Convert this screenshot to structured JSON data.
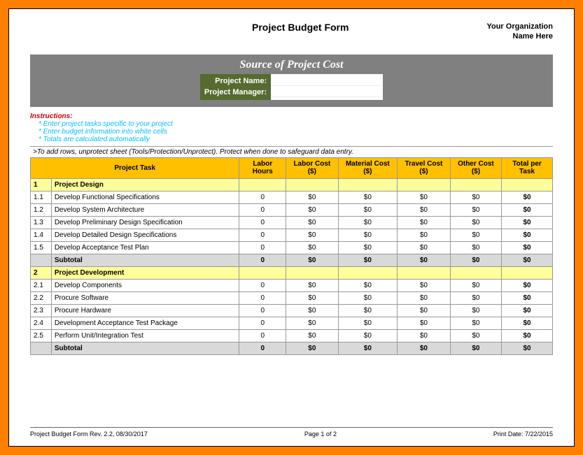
{
  "header": {
    "form_title": "Project Budget Form",
    "org_line1": "Your Organization",
    "org_line2": "Name Here"
  },
  "banner": {
    "title": "Source of Project Cost",
    "label_project_name": "Project Name:",
    "label_project_manager": "Project Manager:"
  },
  "instructions": {
    "title": "Instructions:",
    "lines": [
      "* Enter project tasks specific to your project",
      "* Enter budget information into white cells",
      "* Totals are calculated automatically"
    ],
    "protect_note": ">To add rows, unprotect sheet (Tools/Protection/Unprotect).  Protect when done to safeguard data entry."
  },
  "columns": {
    "task": "Project Task",
    "labor_hours": "Labor Hours",
    "labor_cost": "Labor Cost ($)",
    "material_cost": "Material Cost ($)",
    "travel_cost": "Travel Cost ($)",
    "other_cost": "Other Cost ($)",
    "total": "Total per Task"
  },
  "sections": [
    {
      "num": "1",
      "title": "Project Design",
      "rows": [
        {
          "num": "1.1",
          "task": "Develop Functional Specifications",
          "hours": "0",
          "labor": "$0",
          "material": "$0",
          "travel": "$0",
          "other": "$0",
          "total": "$0"
        },
        {
          "num": "1.2",
          "task": "Develop System Architecture",
          "hours": "0",
          "labor": "$0",
          "material": "$0",
          "travel": "$0",
          "other": "$0",
          "total": "$0"
        },
        {
          "num": "1.3",
          "task": "Develop Preliminary Design Specification",
          "hours": "0",
          "labor": "$0",
          "material": "$0",
          "travel": "$0",
          "other": "$0",
          "total": "$0"
        },
        {
          "num": "1.4",
          "task": "Develop Detailed Design Specifications",
          "hours": "0",
          "labor": "$0",
          "material": "$0",
          "travel": "$0",
          "other": "$0",
          "total": "$0"
        },
        {
          "num": "1.5",
          "task": "Develop Acceptance Test Plan",
          "hours": "0",
          "labor": "$0",
          "material": "$0",
          "travel": "$0",
          "other": "$0",
          "total": "$0"
        }
      ],
      "subtotal": {
        "label": "Subtotal",
        "hours": "0",
        "labor": "$0",
        "material": "$0",
        "travel": "$0",
        "other": "$0",
        "total": "$0"
      }
    },
    {
      "num": "2",
      "title": "Project Development",
      "rows": [
        {
          "num": "2.1",
          "task": "Develop Components",
          "hours": "0",
          "labor": "$0",
          "material": "$0",
          "travel": "$0",
          "other": "$0",
          "total": "$0"
        },
        {
          "num": "2.2",
          "task": "Procure Software",
          "hours": "0",
          "labor": "$0",
          "material": "$0",
          "travel": "$0",
          "other": "$0",
          "total": "$0"
        },
        {
          "num": "2.3",
          "task": "Procure Hardware",
          "hours": "0",
          "labor": "$0",
          "material": "$0",
          "travel": "$0",
          "other": "$0",
          "total": "$0"
        },
        {
          "num": "2.4",
          "task": "Development Acceptance Test Package",
          "hours": "0",
          "labor": "$0",
          "material": "$0",
          "travel": "$0",
          "other": "$0",
          "total": "$0"
        },
        {
          "num": "2.5",
          "task": "Perform Unit/Integration Test",
          "hours": "0",
          "labor": "$0",
          "material": "$0",
          "travel": "$0",
          "other": "$0",
          "total": "$0"
        }
      ],
      "subtotal": {
        "label": "Subtotal",
        "hours": "0",
        "labor": "$0",
        "material": "$0",
        "travel": "$0",
        "other": "$0",
        "total": "$0"
      }
    }
  ],
  "footer": {
    "left": "Project Budget Form Rev. 2.2, 08/30/2017",
    "center": "Page 1 of 2",
    "right": "Print Date: 7/22/2015"
  },
  "colors": {
    "frame": "#ff7f00",
    "banner_bg": "#808080",
    "meta_bg": "#556b2f",
    "header_row_bg": "#ffc000",
    "section_row_bg": "#ffff99",
    "subtotal_bg": "#d9d9d9",
    "inst_title": "#cc0000",
    "inst_text": "#00bfff"
  }
}
